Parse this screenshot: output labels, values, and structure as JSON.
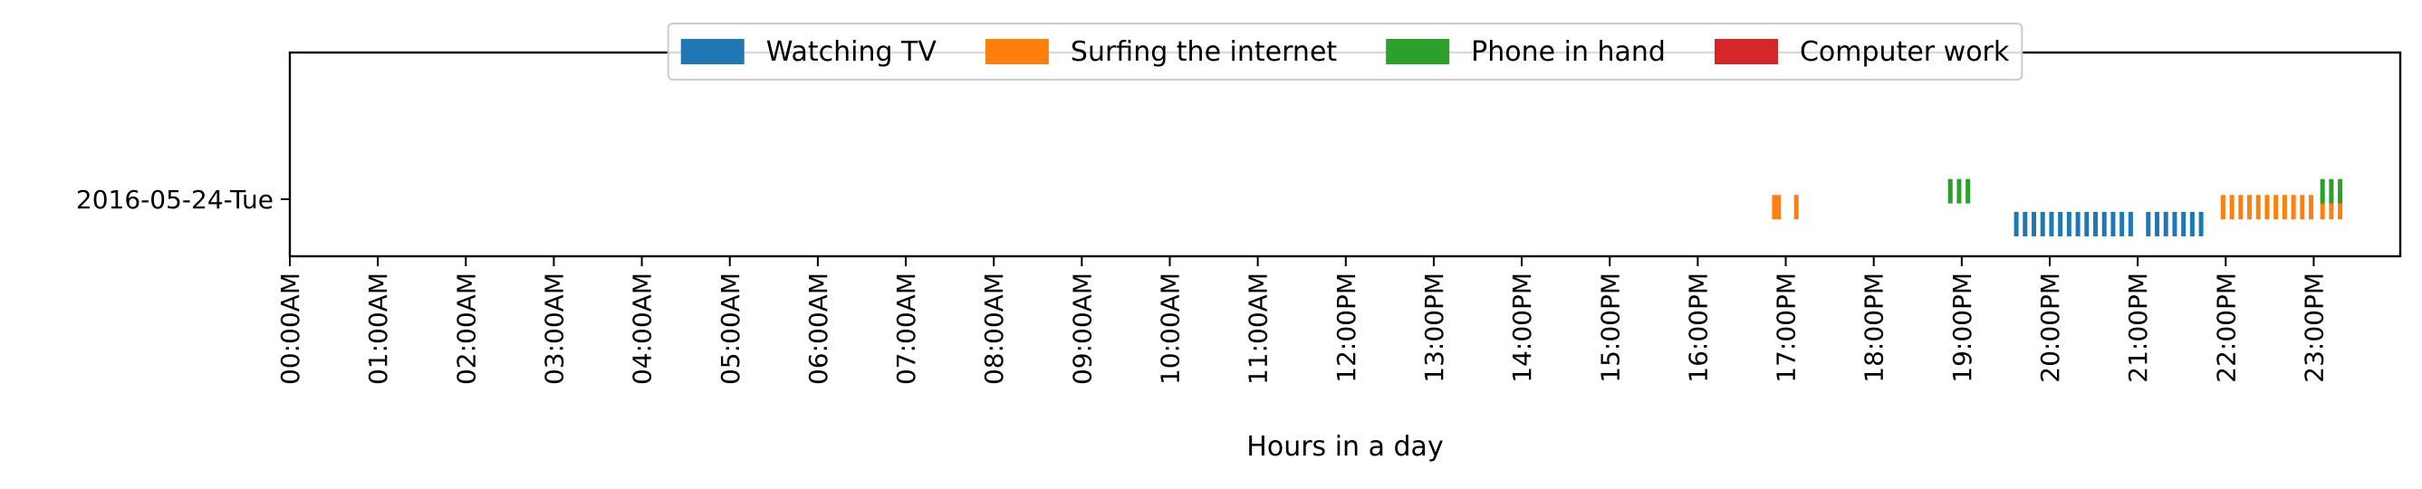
{
  "chart_data": {
    "type": "timeline",
    "title": "",
    "xlabel": "Hours in a day",
    "ylabel": "",
    "xlim_hours": [
      0,
      24
    ],
    "x_tick_labels": [
      "00:00AM",
      "01:00AM",
      "02:00AM",
      "03:00AM",
      "04:00AM",
      "05:00AM",
      "06:00AM",
      "07:00AM",
      "08:00AM",
      "09:00AM",
      "10:00AM",
      "11:00AM",
      "12:00PM",
      "13:00PM",
      "14:00PM",
      "15:00PM",
      "16:00PM",
      "17:00PM",
      "18:00PM",
      "19:00PM",
      "20:00PM",
      "21:00PM",
      "22:00PM",
      "23:00PM"
    ],
    "rows": [
      "2016-05-24-Tue"
    ],
    "legend": {
      "placement": "upper-center",
      "ncol": 4
    },
    "series": [
      {
        "name": "Watching TV",
        "color": "#1f77b4",
        "row": "2016-05-24-Tue",
        "y_offset": -0.25,
        "times": [
          19.62,
          19.72,
          19.82,
          19.92,
          20.02,
          20.12,
          20.22,
          20.32,
          20.42,
          20.52,
          20.62,
          20.72,
          20.82,
          20.92,
          21.12,
          21.22,
          21.32,
          21.42,
          21.52,
          21.62,
          21.72
        ]
      },
      {
        "name": "Surfing the internet",
        "color": "#ff7f0e",
        "row": "2016-05-24-Tue",
        "y_offset": -0.08,
        "times": [
          16.87,
          16.92,
          17.12,
          21.97,
          22.07,
          22.17,
          22.27,
          22.37,
          22.47,
          22.57,
          22.67,
          22.77,
          22.87,
          22.97,
          23.1,
          23.2,
          23.3
        ]
      },
      {
        "name": "Phone in hand",
        "color": "#2ca02c",
        "row": "2016-05-24-Tue",
        "y_offset": 0.08,
        "times": [
          18.87,
          18.97,
          19.07,
          23.1,
          23.2,
          23.3
        ]
      },
      {
        "name": "Computer work",
        "color": "#d62728",
        "row": "2016-05-24-Tue",
        "y_offset": 0.25,
        "times": []
      }
    ]
  }
}
